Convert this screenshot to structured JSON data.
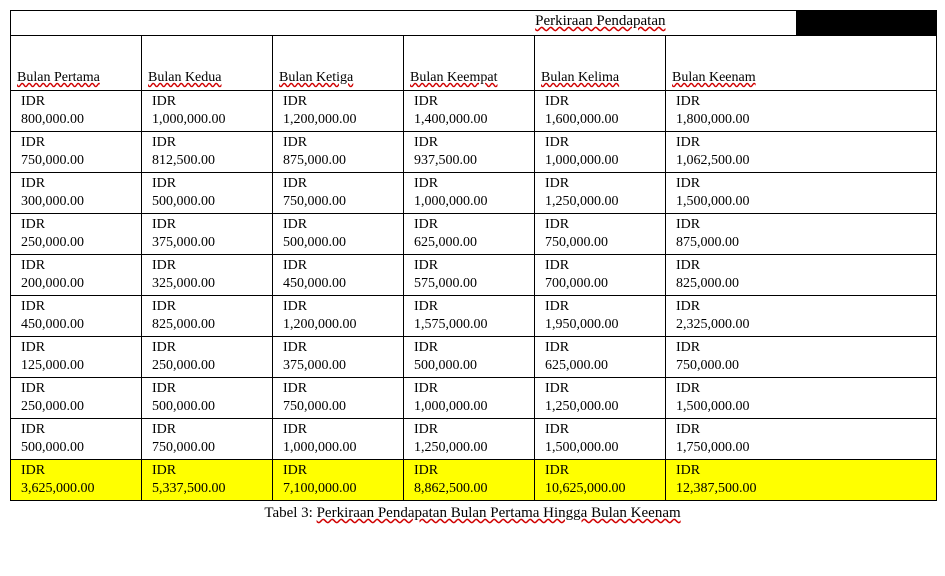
{
  "title": "Perkiraan Pendapatan",
  "caption_prefix": "Tabel 3: ",
  "caption_text": "Perkiraan Pendapatan Bulan Pertama Hingga Bulan Keenam",
  "currency": "IDR",
  "columns": [
    "Bulan Pertama",
    "Bulan Kedua",
    "Bulan Ketiga",
    "Bulan Keempat",
    "Bulan Kelima",
    "Bulan Keenam"
  ],
  "rows": [
    [
      "800,000.00",
      "1,000,000.00",
      "1,200,000.00",
      "1,400,000.00",
      "1,600,000.00",
      "1,800,000.00"
    ],
    [
      "750,000.00",
      "812,500.00",
      "875,000.00",
      "937,500.00",
      "1,000,000.00",
      "1,062,500.00"
    ],
    [
      "300,000.00",
      "500,000.00",
      "750,000.00",
      "1,000,000.00",
      "1,250,000.00",
      "1,500,000.00"
    ],
    [
      "250,000.00",
      "375,000.00",
      "500,000.00",
      "625,000.00",
      "750,000.00",
      "875,000.00"
    ],
    [
      "200,000.00",
      "325,000.00",
      "450,000.00",
      "575,000.00",
      "700,000.00",
      "825,000.00"
    ],
    [
      "450,000.00",
      "825,000.00",
      "1,200,000.00",
      "1,575,000.00",
      "1,950,000.00",
      "2,325,000.00"
    ],
    [
      "125,000.00",
      "250,000.00",
      "375,000.00",
      "500,000.00",
      "625,000.00",
      "750,000.00"
    ],
    [
      "250,000.00",
      "500,000.00",
      "750,000.00",
      "1,000,000.00",
      "1,250,000.00",
      "1,500,000.00"
    ],
    [
      "500,000.00",
      "750,000.00",
      "1,000,000.00",
      "1,250,000.00",
      "1,500,000.00",
      "1,750,000.00"
    ]
  ],
  "totals": [
    "3,625,000.00",
    "5,337,500.00",
    "7,100,000.00",
    "8,862,500.00",
    "10,625,000.00",
    "12,387,500.00"
  ],
  "style": {
    "highlight_bg": "#ffff00",
    "black_box_bg": "#000000",
    "border_color": "#000000",
    "underline_color": "#d00000",
    "font_family": "Times New Roman",
    "title_fontsize_pt": 11,
    "body_fontsize_pt": 10
  }
}
